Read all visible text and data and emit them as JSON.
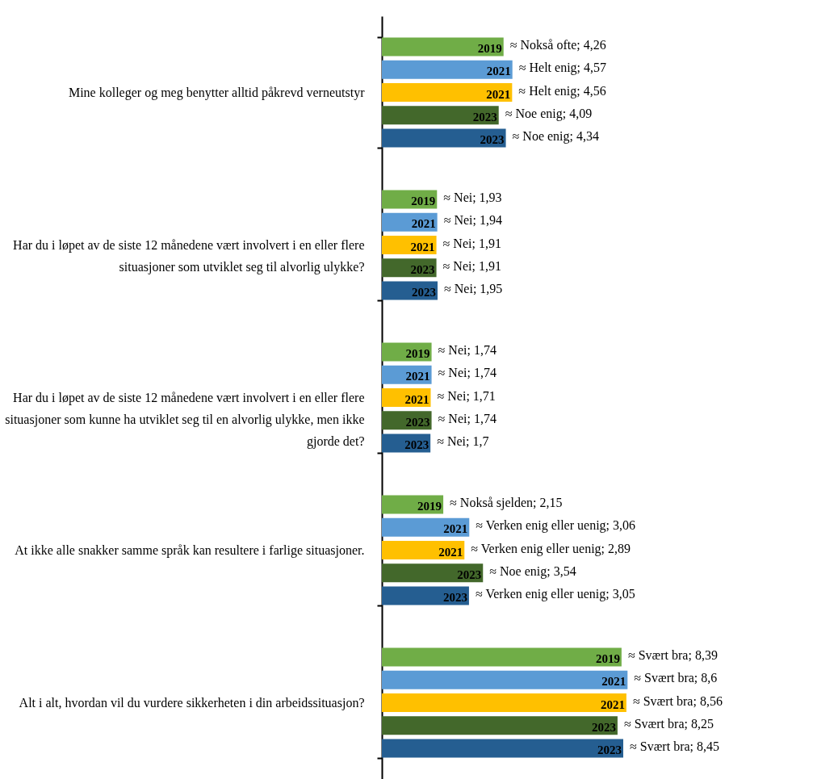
{
  "chart_data": {
    "type": "bar",
    "orientation": "horizontal",
    "categories": [
      "Mine kolleger og meg benytter alltid påkrevd verneutstyr",
      "Har du i løpet av de siste 12 månedene vært involvert i en eller flere situasjoner som utviklet seg til alvorlig ulykke?",
      "Har du i løpet av de siste 12 månedene vært involvert i en eller flere situasjoner som kunne ha utviklet seg til en alvorlig ulykke, men ikke gjorde det?",
      "At ikke alle snakker samme språk kan resultere i farlige situasjoner.",
      "Alt i alt, hvordan vil du vurdere sikkerheten i din arbeidssituasjon?"
    ],
    "xlim": [
      0,
      13
    ],
    "series": [
      {
        "name": "2019",
        "color": "#70ad47",
        "values": [
          4.26,
          1.93,
          1.74,
          2.15,
          8.39
        ],
        "value_labels": [
          "≈ Nokså ofte; 4,26",
          "≈ Nei; 1,93",
          "≈ Nei; 1,74",
          "≈ Nokså sjelden; 2,15",
          "≈ Svært bra; 8,39"
        ]
      },
      {
        "name": "2021",
        "color": "#5b9bd5",
        "values": [
          4.57,
          1.94,
          1.74,
          3.06,
          8.6
        ],
        "value_labels": [
          "≈ Helt enig; 4,57",
          "≈ Nei; 1,94",
          "≈ Nei; 1,74",
          "≈ Verken enig eller uenig; 3,06",
          "≈ Svært bra; 8,6"
        ]
      },
      {
        "name": "2021",
        "color": "#ffc000",
        "values": [
          4.56,
          1.91,
          1.71,
          2.89,
          8.56
        ],
        "value_labels": [
          "≈ Helt enig; 4,56",
          "≈ Nei; 1,91",
          "≈ Nei; 1,71",
          "≈ Verken enig eller uenig; 2,89",
          "≈ Svært bra; 8,56"
        ]
      },
      {
        "name": "2023",
        "color": "#43682b",
        "values": [
          4.09,
          1.91,
          1.74,
          3.54,
          8.25
        ],
        "value_labels": [
          "≈ Noe enig; 4,09",
          "≈ Nei; 1,91",
          "≈ Nei; 1,74",
          "≈ Noe enig; 3,54",
          "≈ Svært bra; 8,25"
        ]
      },
      {
        "name": "2023",
        "color": "#255e91",
        "values": [
          4.34,
          1.95,
          1.7,
          3.05,
          8.45
        ],
        "value_labels": [
          "≈ Noe enig; 4,34",
          "≈ Nei; 1,95",
          "≈ Nei; 1,7",
          "≈ Verken enig eller uenig; 3,05",
          "≈ Svært bra; 8,45"
        ]
      }
    ],
    "legend": false
  }
}
